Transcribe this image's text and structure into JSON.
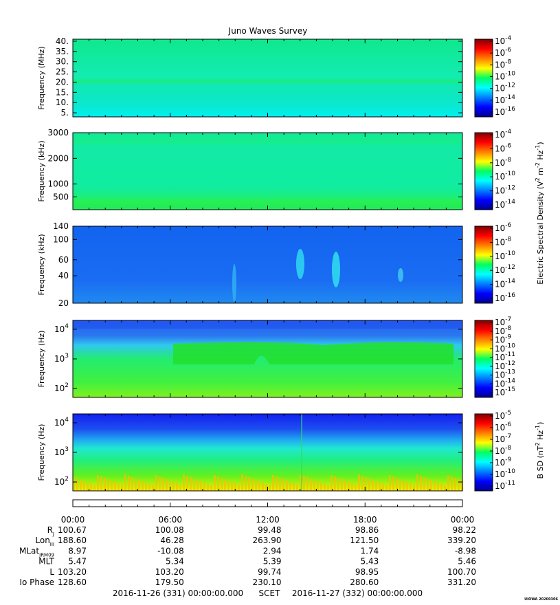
{
  "title": "Juno Waves Survey",
  "stamp": "UIOWA 20200306",
  "chart_data": [
    {
      "type": "heatmap",
      "ylabel": "Frequency (MHz)",
      "yscale": "linear",
      "ylim": [
        3,
        41
      ],
      "yticks": [
        {
          "v": 40,
          "label": "40."
        },
        {
          "v": 35,
          "label": "35."
        },
        {
          "v": 30,
          "label": "30."
        },
        {
          "v": 25,
          "label": "25."
        },
        {
          "v": 20,
          "label": "20."
        },
        {
          "v": 15,
          "label": "15."
        },
        {
          "v": 10,
          "label": "10."
        },
        {
          "v": 5,
          "label": "5."
        }
      ],
      "colorbar": {
        "labels": [
          {
            "base": "10",
            "exp": "-4"
          },
          {
            "base": "10",
            "exp": "-6"
          },
          {
            "base": "10",
            "exp": "-8"
          },
          {
            "base": "10",
            "exp": "-10"
          },
          {
            "base": "10",
            "exp": "-12"
          },
          {
            "base": "10",
            "exp": "-14"
          },
          {
            "base": "10",
            "exp": "-16"
          }
        ]
      }
    },
    {
      "type": "heatmap",
      "ylabel": "Frequency (kHz)",
      "yscale": "linear",
      "ylim": [
        0,
        3000
      ],
      "yticks": [
        {
          "v": 3000,
          "label": "3000"
        },
        {
          "v": 2000,
          "label": "2000"
        },
        {
          "v": 1000,
          "label": "1000"
        },
        {
          "v": 500,
          "label": "500"
        }
      ],
      "colorbar": {
        "labels": [
          {
            "base": "10",
            "exp": "-4"
          },
          {
            "base": "10",
            "exp": "-6"
          },
          {
            "base": "10",
            "exp": "-8"
          },
          {
            "base": "10",
            "exp": "-10"
          },
          {
            "base": "10",
            "exp": "-12"
          },
          {
            "base": "10",
            "exp": "-14"
          }
        ]
      }
    },
    {
      "type": "heatmap",
      "ylabel": "Frequency (kHz)",
      "yscale": "log",
      "ylim": [
        20,
        140
      ],
      "yticks": [
        {
          "v": 140,
          "label": "140"
        },
        {
          "v": 100,
          "label": "100"
        },
        {
          "v": 60,
          "label": "60"
        },
        {
          "v": 40,
          "label": "40"
        },
        {
          "v": 20,
          "label": "20"
        }
      ],
      "colorbar": {
        "labels": [
          {
            "base": "10",
            "exp": "-6"
          },
          {
            "base": "10",
            "exp": "-8"
          },
          {
            "base": "10",
            "exp": "-10"
          },
          {
            "base": "10",
            "exp": "-12"
          },
          {
            "base": "10",
            "exp": "-14"
          },
          {
            "base": "10",
            "exp": "-16"
          }
        ]
      }
    },
    {
      "type": "heatmap",
      "ylabel": "Frequency (Hz)",
      "yscale": "log",
      "ylim": [
        50,
        20000
      ],
      "yticks": [
        {
          "v": 10000,
          "base": "10",
          "exp": "4"
        },
        {
          "v": 1000,
          "base": "10",
          "exp": "3"
        },
        {
          "v": 100,
          "base": "10",
          "exp": "2"
        }
      ],
      "colorbar": {
        "labels": [
          {
            "base": "10",
            "exp": "-7"
          },
          {
            "base": "10",
            "exp": "-8"
          },
          {
            "base": "10",
            "exp": "-9"
          },
          {
            "base": "10",
            "exp": "-10"
          },
          {
            "base": "10",
            "exp": "-11"
          },
          {
            "base": "10",
            "exp": "-12"
          },
          {
            "base": "10",
            "exp": "-13"
          },
          {
            "base": "10",
            "exp": "-14"
          },
          {
            "base": "10",
            "exp": "-15"
          }
        ]
      }
    },
    {
      "type": "heatmap",
      "ylabel": "Frequency (Hz)",
      "yscale": "log",
      "ylim": [
        50,
        20000
      ],
      "yticks": [
        {
          "v": 10000,
          "base": "10",
          "exp": "4"
        },
        {
          "v": 1000,
          "base": "10",
          "exp": "3"
        },
        {
          "v": 100,
          "base": "10",
          "exp": "2"
        }
      ],
      "colorbar": {
        "labels": [
          {
            "base": "10",
            "exp": "-5"
          },
          {
            "base": "10",
            "exp": "-6"
          },
          {
            "base": "10",
            "exp": "-7"
          },
          {
            "base": "10",
            "exp": "-8"
          },
          {
            "base": "10",
            "exp": "-9"
          },
          {
            "base": "10",
            "exp": "-10"
          },
          {
            "base": "10",
            "exp": "-11"
          }
        ]
      }
    }
  ],
  "colorbar_titles": {
    "electric": {
      "text1": "Electric Spectral Density (V",
      "sup1": "2",
      "text2": " m",
      "sup2": "-2",
      "text3": " Hz",
      "sup3": "-1",
      "text4": ")"
    },
    "magnetic": {
      "text1": "B SD (nT",
      "sup1": "2",
      "text2": " Hz",
      "sup2": "-1",
      "text3": ")"
    }
  },
  "time_axis": {
    "ticks": [
      "00:00",
      "06:00",
      "12:00",
      "18:00",
      "00:00"
    ],
    "rows": [
      {
        "label": "R",
        "sub": "J",
        "values": [
          "100.67",
          "100.08",
          "99.48",
          "98.86",
          "98.22"
        ]
      },
      {
        "label": "Lon",
        "sub": "III",
        "values": [
          "188.60",
          "46.28",
          "263.90",
          "121.50",
          "339.20"
        ]
      },
      {
        "label": "MLat",
        "sub": "JRM09",
        "values": [
          "8.97",
          "-10.08",
          "2.94",
          "1.74",
          "-8.98"
        ]
      },
      {
        "label": "MLT",
        "sub": "",
        "values": [
          "5.47",
          "5.34",
          "5.39",
          "5.43",
          "5.46"
        ]
      },
      {
        "label": "L",
        "sub": "",
        "values": [
          "103.20",
          "103.20",
          "99.74",
          "98.95",
          "100.70"
        ]
      },
      {
        "label": "Io Phase",
        "sub": "",
        "values": [
          "128.60",
          "179.50",
          "230.10",
          "280.60",
          "331.20"
        ]
      }
    ],
    "start": "2016-11-26 (331) 00:00:00.000",
    "scet": "SCET",
    "end": "2016-11-27 (332) 00:00:00.000"
  }
}
